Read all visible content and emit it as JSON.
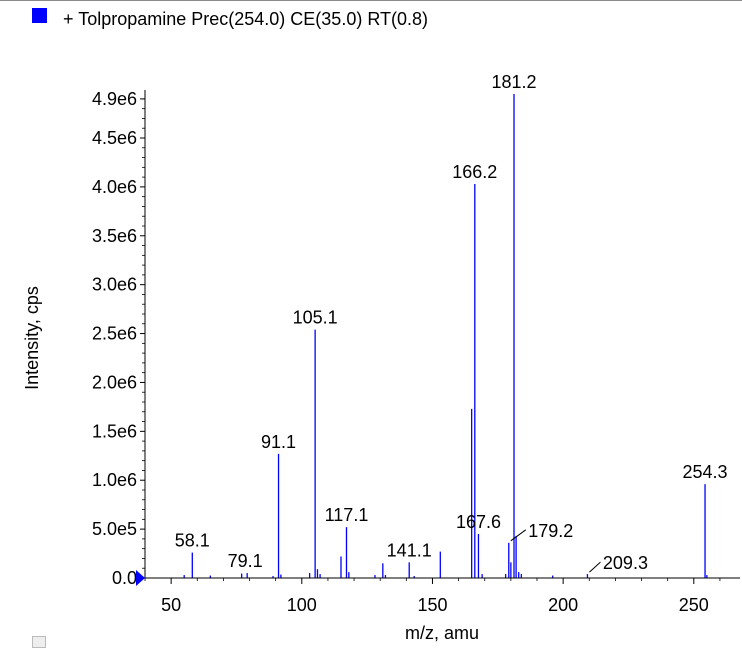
{
  "legend": {
    "text": "+ Tolpropamine Prec(254.0) CE(35.0) RT(0.8)",
    "swatch_color": "#0000ff"
  },
  "chart_data": {
    "type": "bar",
    "x_label": "m/z, amu",
    "y_label": "Intensity, cps",
    "xlim": [
      40,
      265
    ],
    "ylim": [
      0,
      4950000
    ],
    "x_ticks": [
      50,
      100,
      150,
      200,
      250
    ],
    "y_ticks": [
      {
        "value": 0,
        "label": "0.0"
      },
      {
        "value": 500000,
        "label": "5.0e5"
      },
      {
        "value": 1000000,
        "label": "1.0e6"
      },
      {
        "value": 1500000,
        "label": "1.5e6"
      },
      {
        "value": 2000000,
        "label": "2.0e6"
      },
      {
        "value": 2500000,
        "label": "2.5e6"
      },
      {
        "value": 3000000,
        "label": "3.0e6"
      },
      {
        "value": 3500000,
        "label": "3.5e6"
      },
      {
        "value": 4000000,
        "label": "4.0e6"
      },
      {
        "value": 4500000,
        "label": "4.5e6"
      },
      {
        "value": 4900000,
        "label": "4.9e6"
      }
    ],
    "bar_color": "#0000ff",
    "peaks": [
      {
        "mz": 55.0,
        "intensity": 30000
      },
      {
        "mz": 58.1,
        "intensity": 260000,
        "label": "58.1"
      },
      {
        "mz": 65.0,
        "intensity": 25000
      },
      {
        "mz": 77.0,
        "intensity": 45000
      },
      {
        "mz": 79.1,
        "intensity": 50000,
        "label": "79.1"
      },
      {
        "mz": 89.0,
        "intensity": 20000
      },
      {
        "mz": 91.1,
        "intensity": 1270000,
        "label": "91.1"
      },
      {
        "mz": 92.0,
        "intensity": 35000
      },
      {
        "mz": 103.0,
        "intensity": 50000
      },
      {
        "mz": 105.1,
        "intensity": 2540000,
        "label": "105.1"
      },
      {
        "mz": 106.0,
        "intensity": 90000
      },
      {
        "mz": 107.0,
        "intensity": 40000
      },
      {
        "mz": 115.0,
        "intensity": 220000
      },
      {
        "mz": 117.1,
        "intensity": 520000,
        "label": "117.1"
      },
      {
        "mz": 118.0,
        "intensity": 60000
      },
      {
        "mz": 128.0,
        "intensity": 30000
      },
      {
        "mz": 131.0,
        "intensity": 150000
      },
      {
        "mz": 132.0,
        "intensity": 30000
      },
      {
        "mz": 141.1,
        "intensity": 160000,
        "label": "141.1"
      },
      {
        "mz": 143.0,
        "intensity": 20000
      },
      {
        "mz": 153.0,
        "intensity": 270000
      },
      {
        "mz": 165.0,
        "intensity": 1730000
      },
      {
        "mz": 166.2,
        "intensity": 4030000,
        "label": "166.2"
      },
      {
        "mz": 167.6,
        "intensity": 450000,
        "label": "167.6"
      },
      {
        "mz": 169.0,
        "intensity": 40000
      },
      {
        "mz": 178.0,
        "intensity": 40000
      },
      {
        "mz": 179.2,
        "intensity": 360000,
        "label": "179.2"
      },
      {
        "mz": 180.0,
        "intensity": 160000
      },
      {
        "mz": 181.2,
        "intensity": 4950000,
        "label": "181.2"
      },
      {
        "mz": 182.0,
        "intensity": 430000
      },
      {
        "mz": 183.0,
        "intensity": 60000
      },
      {
        "mz": 184.0,
        "intensity": 40000
      },
      {
        "mz": 196.0,
        "intensity": 25000
      },
      {
        "mz": 209.3,
        "intensity": 40000,
        "label": "209.3"
      },
      {
        "mz": 254.3,
        "intensity": 960000,
        "label": "254.3"
      },
      {
        "mz": 255.0,
        "intensity": 30000
      }
    ]
  }
}
